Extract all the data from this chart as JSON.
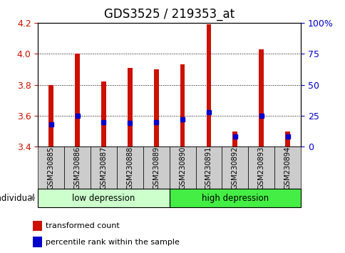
{
  "title": "GDS3525 / 219353_at",
  "samples": [
    "GSM230885",
    "GSM230886",
    "GSM230887",
    "GSM230888",
    "GSM230889",
    "GSM230890",
    "GSM230891",
    "GSM230892",
    "GSM230893",
    "GSM230894"
  ],
  "transformed_count": [
    3.8,
    4.0,
    3.82,
    3.91,
    3.9,
    3.93,
    4.19,
    3.5,
    4.03,
    3.5
  ],
  "percentile_rank_pct": [
    18,
    25,
    20,
    19,
    20,
    22,
    28,
    8,
    25,
    8
  ],
  "ylim": [
    3.4,
    4.2
  ],
  "yticks_left": [
    3.4,
    3.6,
    3.8,
    4.0,
    4.2
  ],
  "yticks_right_vals": [
    0,
    25,
    50,
    75,
    100
  ],
  "yticks_right_labels": [
    "0",
    "25",
    "50",
    "75",
    "100%"
  ],
  "bar_color": "#cc1100",
  "dot_color": "#0000cc",
  "group_labels": [
    "low depression",
    "high depression"
  ],
  "group_split": 5,
  "group_color_low": "#ccffcc",
  "group_color_high": "#44ee44",
  "xlabel": "individual",
  "legend_items": [
    "transformed count",
    "percentile rank within the sample"
  ],
  "legend_colors": [
    "#cc1100",
    "#0000cc"
  ],
  "bar_width": 0.18,
  "base_value": 3.4,
  "grid_color": "#000000",
  "tick_color_left": "#cc1100",
  "tick_color_right": "#0000cc",
  "title_fontsize": 12,
  "label_fontsize": 8,
  "tick_fontsize": 9,
  "sample_box_color": "#cccccc",
  "plot_bg": "#ffffff"
}
